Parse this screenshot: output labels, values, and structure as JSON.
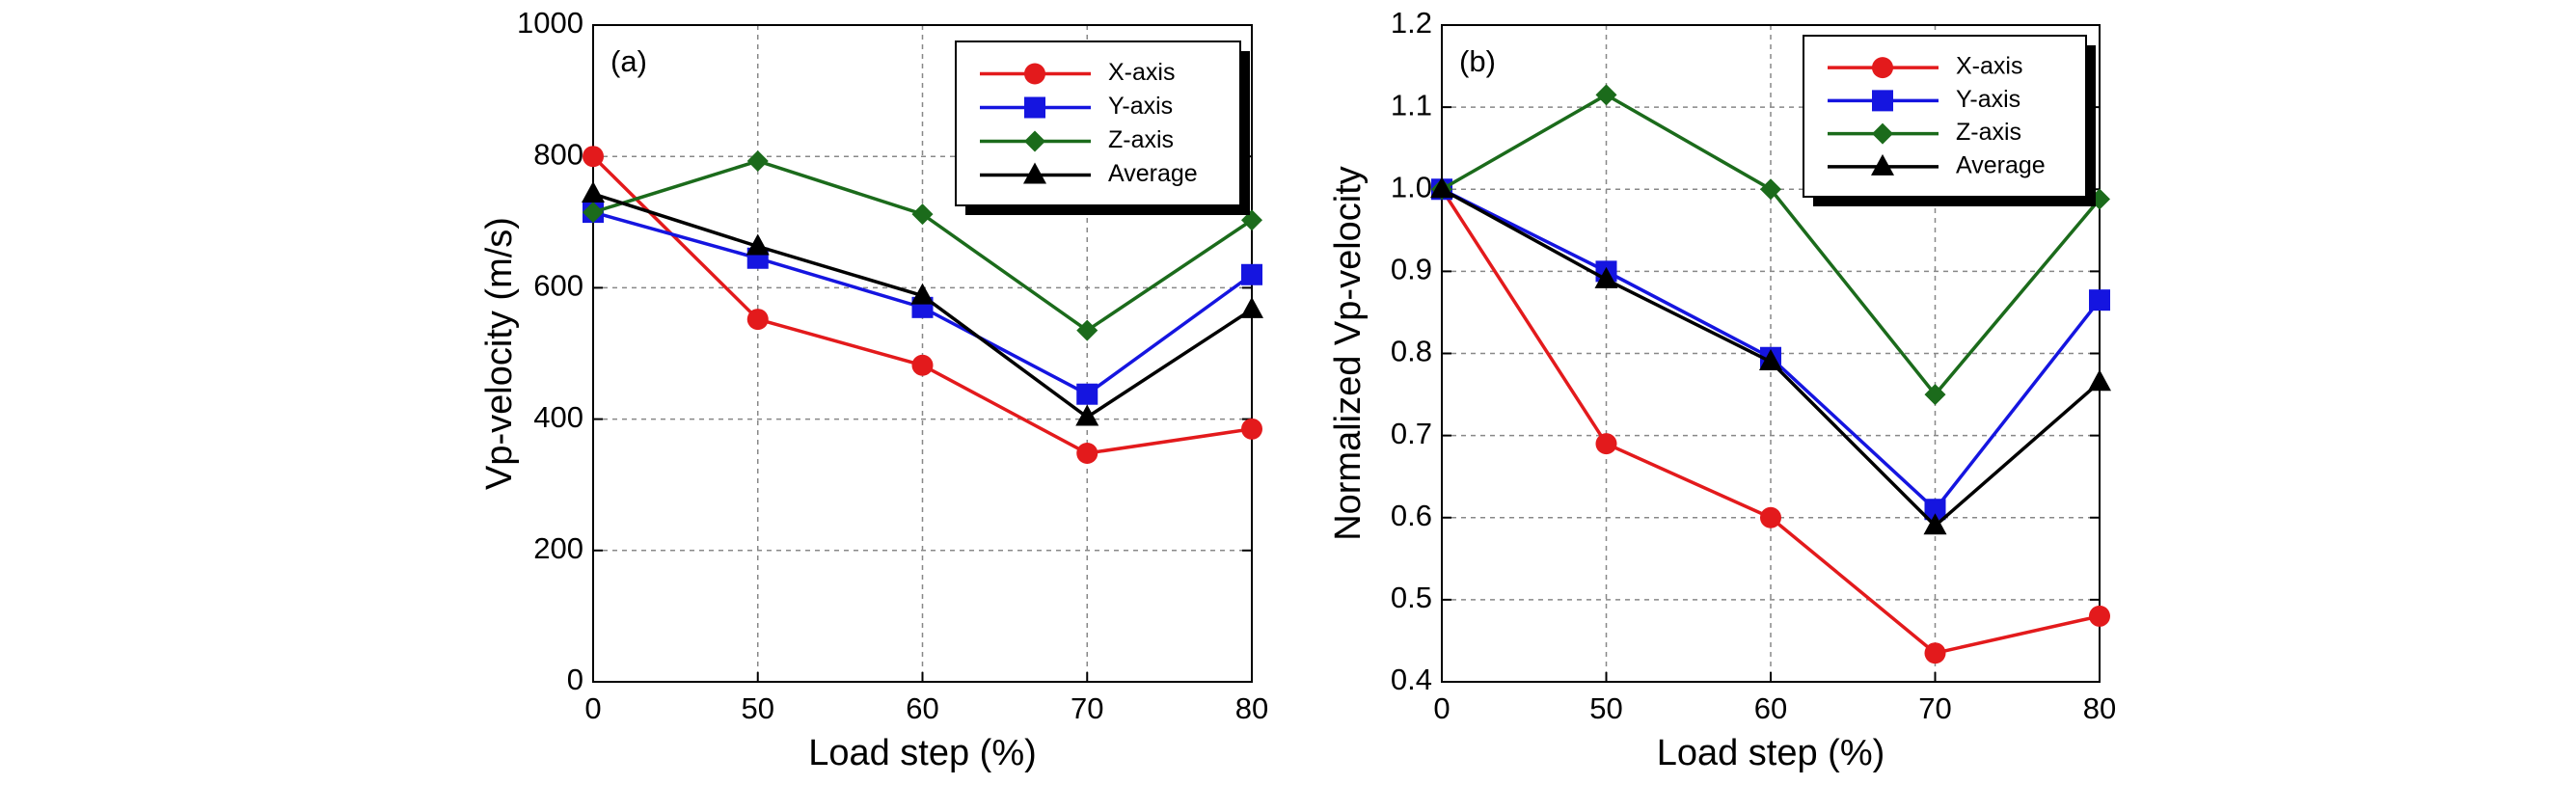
{
  "chart_data": [
    {
      "type": "line",
      "annotation": "(a)",
      "x_label": "Load step (%)",
      "y_label": "Vp-velocity (m/s)",
      "categories": [
        "0",
        "50",
        "60",
        "70",
        "80"
      ],
      "ylim": [
        0,
        1000
      ],
      "yticks": [
        0,
        200,
        400,
        600,
        800,
        1000
      ],
      "grid": true,
      "legend": "upper right",
      "series": [
        {
          "name": "X-axis",
          "color": "#e31a1c",
          "marker": "circle",
          "values": [
            800,
            552,
            482,
            348,
            385
          ]
        },
        {
          "name": "Y-axis",
          "color": "#1515e0",
          "marker": "square",
          "values": [
            715,
            645,
            570,
            438,
            620
          ]
        },
        {
          "name": "Z-axis",
          "color": "#1b6b1b",
          "marker": "diamond",
          "values": [
            715,
            793,
            712,
            535,
            703
          ]
        },
        {
          "name": "Average",
          "color": "#000000",
          "marker": "triangle",
          "values": [
            743,
            663,
            588,
            403,
            567
          ]
        }
      ]
    },
    {
      "type": "line",
      "annotation": "(b)",
      "x_label": "Load step (%)",
      "y_label": "Normalized Vp-velocity",
      "categories": [
        "0",
        "50",
        "60",
        "70",
        "80"
      ],
      "ylim": [
        0.4,
        1.2
      ],
      "yticks": [
        0.4,
        0.5,
        0.6,
        0.7,
        0.8,
        0.9,
        {
          "value": 1,
          "label": "1.0"
        },
        1.1,
        1.2
      ],
      "grid": true,
      "legend": "upper right",
      "series": [
        {
          "name": "X-axis",
          "color": "#e31a1c",
          "marker": "circle",
          "values": [
            1,
            0.69,
            0.6,
            0.435,
            0.48
          ]
        },
        {
          "name": "Y-axis",
          "color": "#1515e0",
          "marker": "square",
          "values": [
            1,
            0.9,
            0.795,
            0.61,
            0.865
          ]
        },
        {
          "name": "Z-axis",
          "color": "#1b6b1b",
          "marker": "diamond",
          "values": [
            1,
            1.115,
            1,
            0.75,
            0.988
          ]
        },
        {
          "name": "Average",
          "color": "#000000",
          "marker": "triangle",
          "values": [
            1,
            0.89,
            0.79,
            0.59,
            0.765
          ]
        }
      ]
    }
  ]
}
